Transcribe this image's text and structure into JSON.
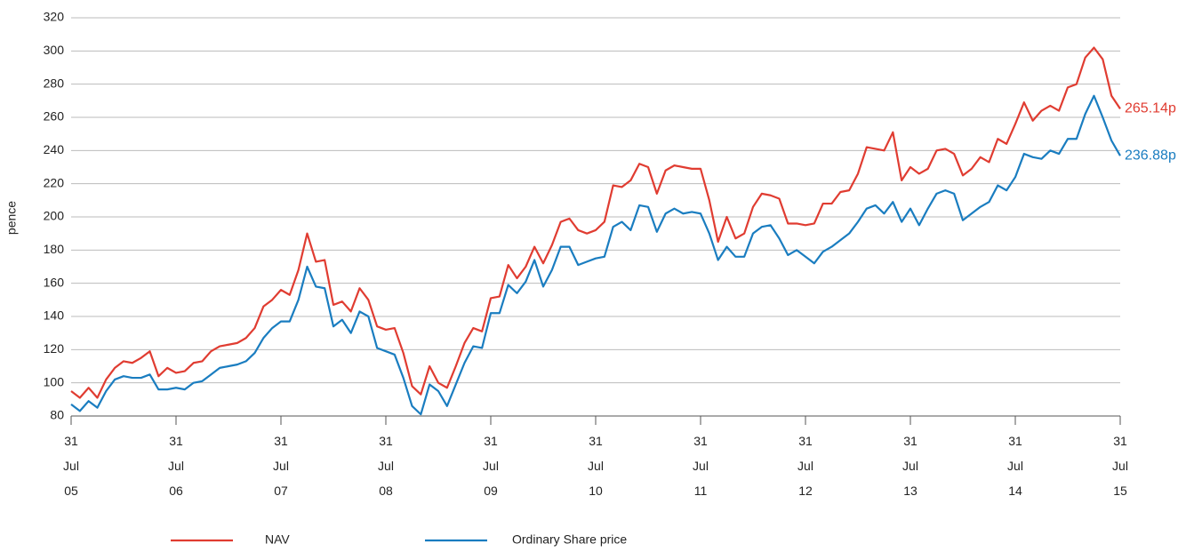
{
  "chart_data": {
    "type": "line",
    "y_label": "pence",
    "ylim": [
      80,
      320
    ],
    "yticks": [
      80,
      100,
      120,
      140,
      160,
      180,
      200,
      220,
      240,
      260,
      280,
      300,
      320
    ],
    "grid": true,
    "categories": [
      "31 Jul 05",
      null,
      null,
      null,
      null,
      null,
      null,
      null,
      null,
      null,
      null,
      null,
      "31 Jul 06",
      null,
      null,
      null,
      null,
      null,
      null,
      null,
      null,
      null,
      null,
      null,
      "31 Jul 07",
      null,
      null,
      null,
      null,
      null,
      null,
      null,
      null,
      null,
      null,
      null,
      "31 Jul 08",
      null,
      null,
      null,
      null,
      null,
      null,
      null,
      null,
      null,
      null,
      null,
      "31 Jul 09",
      null,
      null,
      null,
      null,
      null,
      null,
      null,
      null,
      null,
      null,
      null,
      "31 Jul 10",
      null,
      null,
      null,
      null,
      null,
      null,
      null,
      null,
      null,
      null,
      null,
      "31 Jul 11",
      null,
      null,
      null,
      null,
      null,
      null,
      null,
      null,
      null,
      null,
      null,
      "31 Jul 12",
      null,
      null,
      null,
      null,
      null,
      null,
      null,
      null,
      null,
      null,
      null,
      "31 Jul 13",
      null,
      null,
      null,
      null,
      null,
      null,
      null,
      null,
      null,
      null,
      null,
      "31 Jul 14",
      null,
      null,
      null,
      null,
      null,
      null,
      null,
      null,
      null,
      null,
      null,
      "31 Jul 15"
    ],
    "legend": "bottom",
    "series": [
      {
        "name": "NAV",
        "color": "#e03c31",
        "end_label": "265.14p",
        "values": [
          95,
          91,
          97,
          91,
          102,
          109,
          113,
          112,
          115,
          119,
          104,
          109,
          106,
          107,
          112,
          113,
          119,
          122,
          123,
          124,
          127,
          133,
          146,
          150,
          156,
          153,
          168,
          190,
          173,
          174,
          147,
          149,
          143,
          157,
          150,
          134,
          132,
          133,
          118,
          98,
          93,
          110,
          100,
          97,
          110,
          124,
          133,
          131,
          151,
          152,
          171,
          163,
          170,
          182,
          172,
          183,
          197,
          199,
          192,
          190,
          192,
          197,
          219,
          218,
          222,
          232,
          230,
          214,
          228,
          231,
          230,
          229,
          229,
          210,
          185,
          200,
          187,
          190,
          206,
          214,
          213,
          211,
          196,
          196,
          195,
          196,
          208,
          208,
          215,
          216,
          226,
          242,
          241,
          240,
          251,
          222,
          230,
          226,
          229,
          240,
          241,
          238,
          225,
          229,
          236,
          233,
          247,
          244,
          256,
          269,
          258,
          264,
          267,
          264,
          278,
          280,
          296,
          302,
          295,
          273,
          265.14
        ]
      },
      {
        "name": "Ordinary Share price",
        "color": "#1a7dc0",
        "end_label": "236.88p",
        "values": [
          87,
          83,
          89,
          85,
          95,
          102,
          104,
          103,
          103,
          105,
          96,
          96,
          97,
          96,
          100,
          101,
          105,
          109,
          110,
          111,
          113,
          118,
          127,
          133,
          137,
          137,
          150,
          170,
          158,
          157,
          134,
          138,
          130,
          143,
          140,
          121,
          119,
          117,
          103,
          86,
          81,
          99,
          95,
          86,
          99,
          112,
          122,
          121,
          142,
          142,
          159,
          154,
          161,
          174,
          158,
          168,
          182,
          182,
          171,
          173,
          175,
          176,
          194,
          197,
          192,
          207,
          206,
          191,
          202,
          205,
          202,
          203,
          202,
          190,
          174,
          182,
          176,
          176,
          190,
          194,
          195,
          187,
          177,
          180,
          176,
          172,
          179,
          182,
          186,
          190,
          197,
          205,
          207,
          202,
          209,
          197,
          205,
          195,
          205,
          214,
          216,
          214,
          198,
          202,
          206,
          209,
          219,
          216,
          224,
          238,
          236,
          235,
          240,
          238,
          247,
          247,
          262,
          273,
          260,
          246,
          236.88
        ]
      }
    ]
  }
}
